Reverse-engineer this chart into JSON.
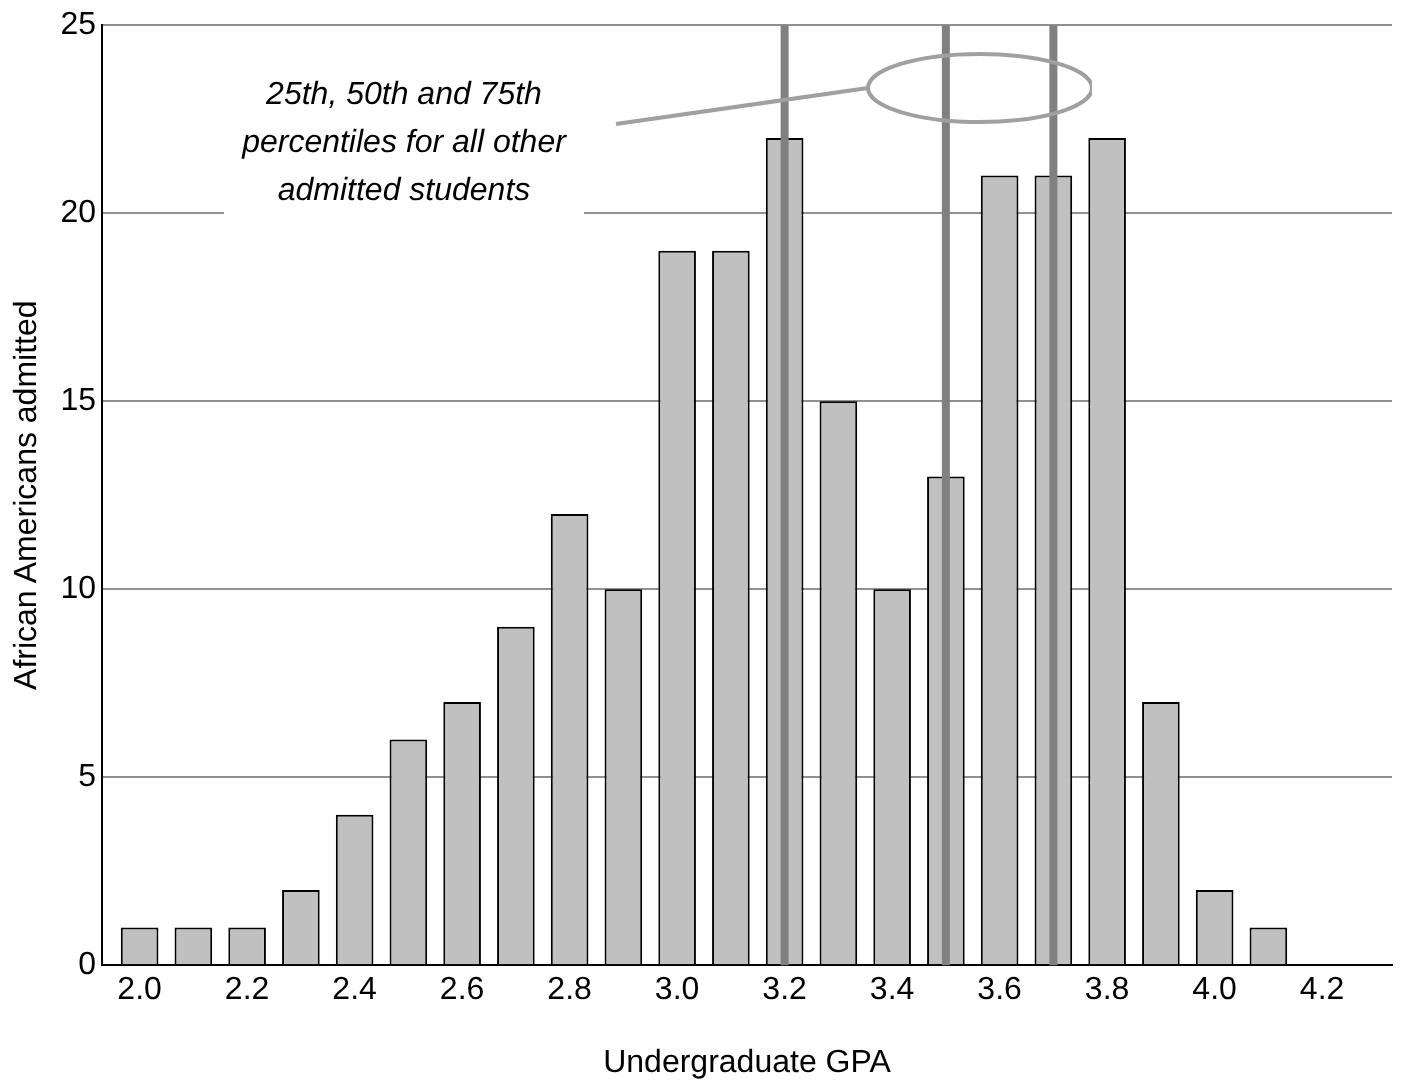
{
  "chart_data": {
    "type": "bar",
    "xlabel": "Undergraduate GPA",
    "ylabel": "African Americans admitted",
    "x": [
      2.0,
      2.1,
      2.2,
      2.3,
      2.4,
      2.5,
      2.6,
      2.7,
      2.8,
      2.9,
      3.0,
      3.1,
      3.2,
      3.3,
      3.4,
      3.5,
      3.6,
      3.7,
      3.8,
      3.9,
      4.0,
      4.1
    ],
    "values": [
      1,
      1,
      1,
      2,
      4,
      6,
      7,
      9,
      12,
      10,
      19,
      19,
      22,
      15,
      10,
      13,
      21,
      21,
      22,
      7,
      2,
      1
    ],
    "color": "#c0c0c0",
    "xlim": [
      1.93,
      4.33
    ],
    "xticks": [
      {
        "value": 2.0,
        "label": "2.0"
      },
      {
        "value": 2.2,
        "label": "2.2"
      },
      {
        "value": 2.4,
        "label": "2.4"
      },
      {
        "value": 2.6,
        "label": "2.6"
      },
      {
        "value": 2.8,
        "label": "2.8"
      },
      {
        "value": 3.0,
        "label": "3.0"
      },
      {
        "value": 3.2,
        "label": "3.2"
      },
      {
        "value": 3.4,
        "label": "3.4"
      },
      {
        "value": 3.6,
        "label": "3.6"
      },
      {
        "value": 3.8,
        "label": "3.8"
      },
      {
        "value": 4.0,
        "label": "4.0"
      },
      {
        "value": 4.2,
        "label": "4.2"
      }
    ],
    "ylim": [
      0,
      25
    ],
    "yticks": [
      0,
      5,
      10,
      15,
      20,
      25
    ],
    "grid": "y",
    "legend": false,
    "ref_lines": [
      {
        "axis": "x",
        "value": 3.2,
        "color": "#808080"
      },
      {
        "axis": "x",
        "value": 3.5,
        "color": "#808080"
      },
      {
        "axis": "x",
        "value": 3.7,
        "color": "#808080"
      }
    ],
    "annotations": [
      "25th, 50th and 75th percentiles for all other admitted students"
    ]
  }
}
